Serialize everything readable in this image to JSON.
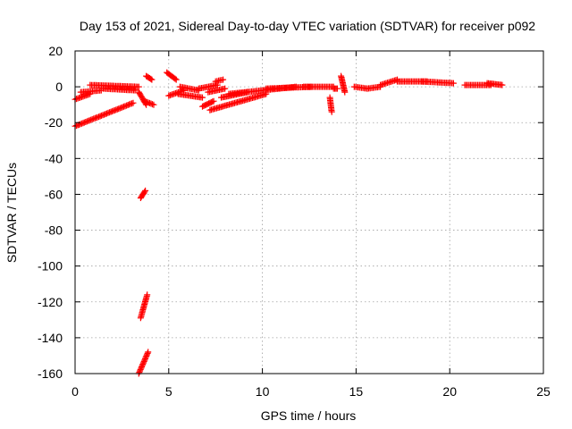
{
  "chart_data": {
    "type": "scatter",
    "title": "Day 153 of 2021, Sidereal Day-to-day VTEC variation (SDTVAR) for receiver p092",
    "xlabel": "GPS time / hours",
    "ylabel": "SDTVAR / TECUs",
    "xlim": [
      0,
      25
    ],
    "ylim": [
      -160,
      20
    ],
    "xticks": [
      0,
      5,
      10,
      15,
      20,
      25
    ],
    "yticks": [
      -160,
      -140,
      -120,
      -100,
      -80,
      -60,
      -40,
      -20,
      0,
      20
    ],
    "grid": true,
    "marker": "+",
    "marker_color": "#ff0000",
    "series": [
      {
        "name": "SDTVAR",
        "segments": [
          {
            "x0": 0.0,
            "y0": -22.0,
            "x1": 3.1,
            "y1": -9.0
          },
          {
            "x0": 0.0,
            "y0": -7.0,
            "x1": 0.8,
            "y1": -4.0
          },
          {
            "x0": 0.3,
            "y0": -3.0,
            "x1": 1.4,
            "y1": -2.0
          },
          {
            "x0": 0.8,
            "y0": 1.0,
            "x1": 3.4,
            "y1": 0.0
          },
          {
            "x0": 1.5,
            "y0": -1.0,
            "x1": 3.2,
            "y1": -2.0
          },
          {
            "x0": 3.4,
            "y0": -3.0,
            "x1": 3.8,
            "y1": -10.0
          },
          {
            "x0": 3.8,
            "y0": 6.0,
            "x1": 4.1,
            "y1": 4.0
          },
          {
            "x0": 3.7,
            "y0": -8.0,
            "x1": 4.2,
            "y1": -10.0
          },
          {
            "x0": 3.5,
            "y0": -62.0,
            "x1": 3.75,
            "y1": -58.0
          },
          {
            "x0": 3.5,
            "y0": -129.0,
            "x1": 3.85,
            "y1": -116.0
          },
          {
            "x0": 3.4,
            "y0": -160.0,
            "x1": 3.9,
            "y1": -148.0
          },
          {
            "x0": 4.9,
            "y0": 8.0,
            "x1": 5.4,
            "y1": 4.0
          },
          {
            "x0": 5.0,
            "y0": -5.0,
            "x1": 5.8,
            "y1": -2.0
          },
          {
            "x0": 5.6,
            "y0": 0.0,
            "x1": 6.6,
            "y1": -2.0
          },
          {
            "x0": 5.5,
            "y0": -4.0,
            "x1": 6.8,
            "y1": -6.0
          },
          {
            "x0": 6.6,
            "y0": -1.0,
            "x1": 7.6,
            "y1": 1.0
          },
          {
            "x0": 6.8,
            "y0": -11.0,
            "x1": 7.4,
            "y1": -8.0
          },
          {
            "x0": 7.1,
            "y0": -3.0,
            "x1": 8.0,
            "y1": -1.0
          },
          {
            "x0": 7.5,
            "y0": 3.0,
            "x1": 7.9,
            "y1": 4.0
          },
          {
            "x0": 7.2,
            "y0": -13.0,
            "x1": 10.2,
            "y1": -4.0
          },
          {
            "x0": 7.8,
            "y0": -6.0,
            "x1": 9.2,
            "y1": -3.0
          },
          {
            "x0": 8.2,
            "y0": -4.0,
            "x1": 11.8,
            "y1": 0.0
          },
          {
            "x0": 10.2,
            "y0": -1.0,
            "x1": 12.6,
            "y1": 0.0
          },
          {
            "x0": 12.2,
            "y0": 0.0,
            "x1": 13.8,
            "y1": 0.0
          },
          {
            "x0": 13.6,
            "y0": -6.0,
            "x1": 13.7,
            "y1": -14.0
          },
          {
            "x0": 13.8,
            "y0": -1.0,
            "x1": 14.0,
            "y1": -1.0
          },
          {
            "x0": 14.2,
            "y0": 6.0,
            "x1": 14.4,
            "y1": -3.0
          },
          {
            "x0": 14.9,
            "y0": 0.0,
            "x1": 15.6,
            "y1": -1.0
          },
          {
            "x0": 15.6,
            "y0": -1.0,
            "x1": 16.3,
            "y1": 0.0
          },
          {
            "x0": 16.3,
            "y0": 1.0,
            "x1": 17.2,
            "y1": 4.0
          },
          {
            "x0": 17.2,
            "y0": 3.0,
            "x1": 18.8,
            "y1": 3.0
          },
          {
            "x0": 18.5,
            "y0": 3.0,
            "x1": 20.2,
            "y1": 2.0
          },
          {
            "x0": 20.8,
            "y0": 1.0,
            "x1": 22.2,
            "y1": 1.0
          },
          {
            "x0": 22.0,
            "y0": 2.0,
            "x1": 22.8,
            "y1": 1.0
          }
        ]
      }
    ]
  }
}
